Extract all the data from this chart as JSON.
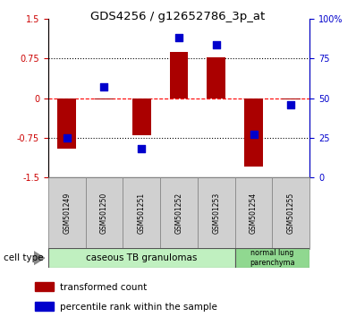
{
  "title": "GDS4256 / g12652786_3p_at",
  "samples": [
    "GSM501249",
    "GSM501250",
    "GSM501251",
    "GSM501252",
    "GSM501253",
    "GSM501254",
    "GSM501255"
  ],
  "red_bars": [
    -0.95,
    -0.02,
    -0.7,
    0.87,
    0.77,
    -1.3,
    -0.02
  ],
  "blue_dot_right_scale": [
    25,
    57,
    18,
    88,
    84,
    27,
    46
  ],
  "ylim_left": [
    -1.5,
    1.5
  ],
  "ylim_right": [
    0,
    100
  ],
  "yticks_left": [
    -1.5,
    -0.75,
    0,
    0.75,
    1.5
  ],
  "ytick_labels_left": [
    "-1.5",
    "-0.75",
    "0",
    "0.75",
    "1.5"
  ],
  "yticks_right": [
    0,
    25,
    50,
    75,
    100
  ],
  "ytick_labels_right": [
    "0",
    "25",
    "50",
    "75",
    "100%"
  ],
  "hlines": [
    -0.75,
    0,
    0.75
  ],
  "hline_styles": [
    "dotted",
    "dashed",
    "dotted"
  ],
  "hline_colors": [
    "black",
    "red",
    "black"
  ],
  "bar_color": "#aa0000",
  "dot_color": "#0000cc",
  "bar_width": 0.5,
  "dot_size": 40,
  "legend_red": "transformed count",
  "legend_blue": "percentile rank within the sample",
  "cell_type_label": "cell type",
  "tick_color_left": "#cc0000",
  "tick_color_right": "#0000cc",
  "cell1_label": "caseous TB granulomas",
  "cell2_label": "normal lung\nparenchyma",
  "cell1_color": "#c0f0c0",
  "cell2_color": "#90d890",
  "sample_box_color": "#d0d0d0",
  "sample_box_edge": "#888888"
}
